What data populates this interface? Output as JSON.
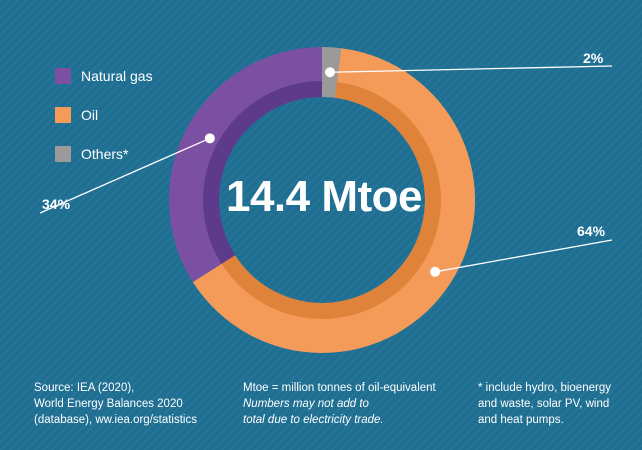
{
  "chart_data": {
    "type": "pie",
    "categories": [
      "Natural gas",
      "Oil",
      "Others*"
    ],
    "values": [
      34,
      64,
      2
    ],
    "value_labels": [
      "34%",
      "64%",
      "2%"
    ],
    "center_label": "14.4 Mtoe",
    "colors": {
      "Natural gas": "#7b50a2",
      "Oil": "#f59b5a",
      "Others*": "#9a9a9a",
      "Natural gas inner": "#5d3a8a",
      "Oil inner": "#e0833a"
    },
    "legend": "top-left"
  },
  "footer": {
    "source": [
      "Source: IEA (2020),",
      "World Energy Balances 2020",
      "(database), ww.iea.org/statistics"
    ],
    "units_note": "Mtoe = million tonnes of oil-equivalent",
    "rounding_note": [
      "Numbers may not add to",
      "total due to electricity trade."
    ],
    "others_note": [
      "* include hydro, bioenergy",
      "and waste, solar PV, wind",
      "and heat pumps."
    ]
  }
}
